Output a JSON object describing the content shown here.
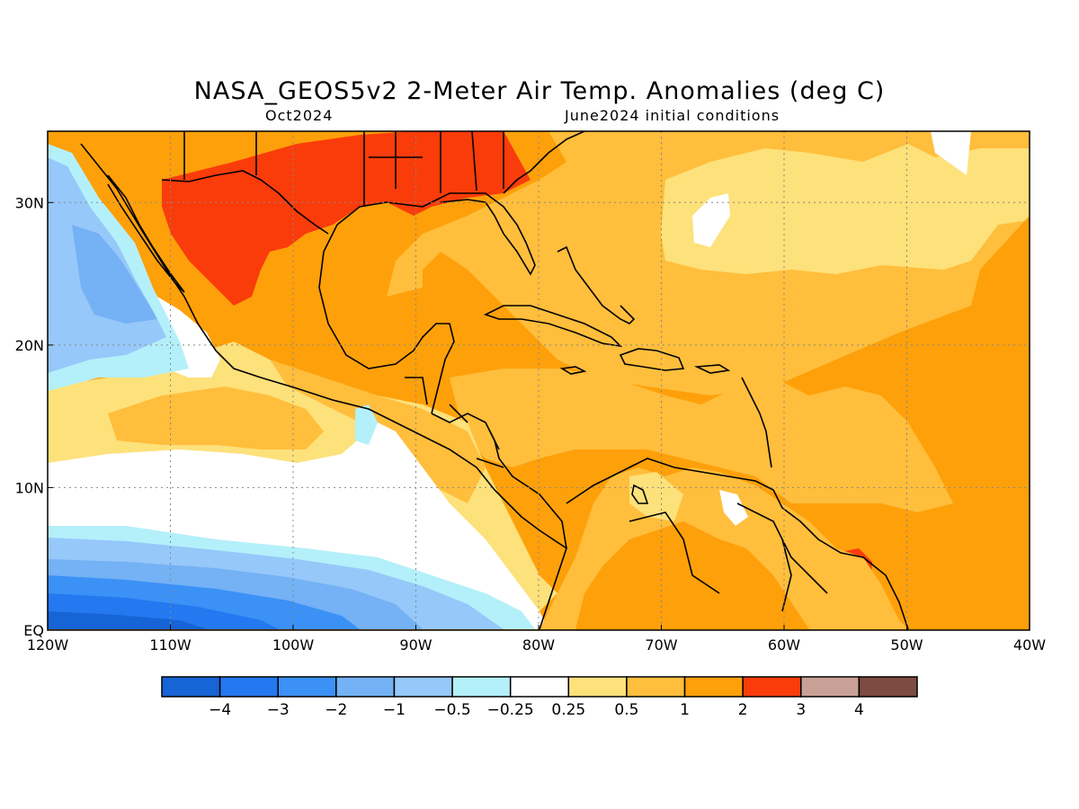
{
  "title": "NASA_GEOS5v2 2-Meter Air Temp. Anomalies (deg C)",
  "subtitle_left": "Oct2024",
  "subtitle_right": "June2024 initial conditions",
  "map": {
    "lon_range": [
      -120,
      -40
    ],
    "lat_range": [
      0,
      35
    ],
    "x_ticks": [
      {
        "lon": -120,
        "label": "120W"
      },
      {
        "lon": -110,
        "label": "110W"
      },
      {
        "lon": -100,
        "label": "100W"
      },
      {
        "lon": -90,
        "label": "90W"
      },
      {
        "lon": -80,
        "label": "80W"
      },
      {
        "lon": -70,
        "label": "70W"
      },
      {
        "lon": -60,
        "label": "60W"
      },
      {
        "lon": -50,
        "label": "50W"
      },
      {
        "lon": -40,
        "label": "40W"
      }
    ],
    "y_ticks": [
      {
        "lat": 0,
        "label": "EQ"
      },
      {
        "lat": 10,
        "label": "10N"
      },
      {
        "lat": 20,
        "label": "20N"
      },
      {
        "lat": 30,
        "label": "30N"
      }
    ],
    "grid": "dotted"
  },
  "colorbar": {
    "colors": [
      "#1764d6",
      "#2478f0",
      "#3b91f5",
      "#74b1f5",
      "#96c8fa",
      "#b4f0fa",
      "#ffffff",
      "#fde17a",
      "#ffbe3c",
      "#fea00a",
      "#fa3c0a",
      "#c8a096",
      "#7d4b41"
    ],
    "labels": [
      "-4",
      "-3",
      "-2",
      "-1",
      "-0.5",
      "-0.25",
      "0.25",
      "0.5",
      "1",
      "2",
      "3",
      "4"
    ]
  },
  "palette": {
    "warm_1_2": "#fea00a",
    "warm_05_1": "#ffbe3c",
    "warm_025_05": "#fde17a",
    "hot_2_3": "#fa3c0a",
    "neutral": "#ffffff",
    "cool_025": "#b4f0fa",
    "cool_05": "#96c8fa",
    "cool_1": "#74b1f5",
    "cool_2": "#3b91f5",
    "cool_3": "#2478f0",
    "cool_4": "#1764d6"
  }
}
